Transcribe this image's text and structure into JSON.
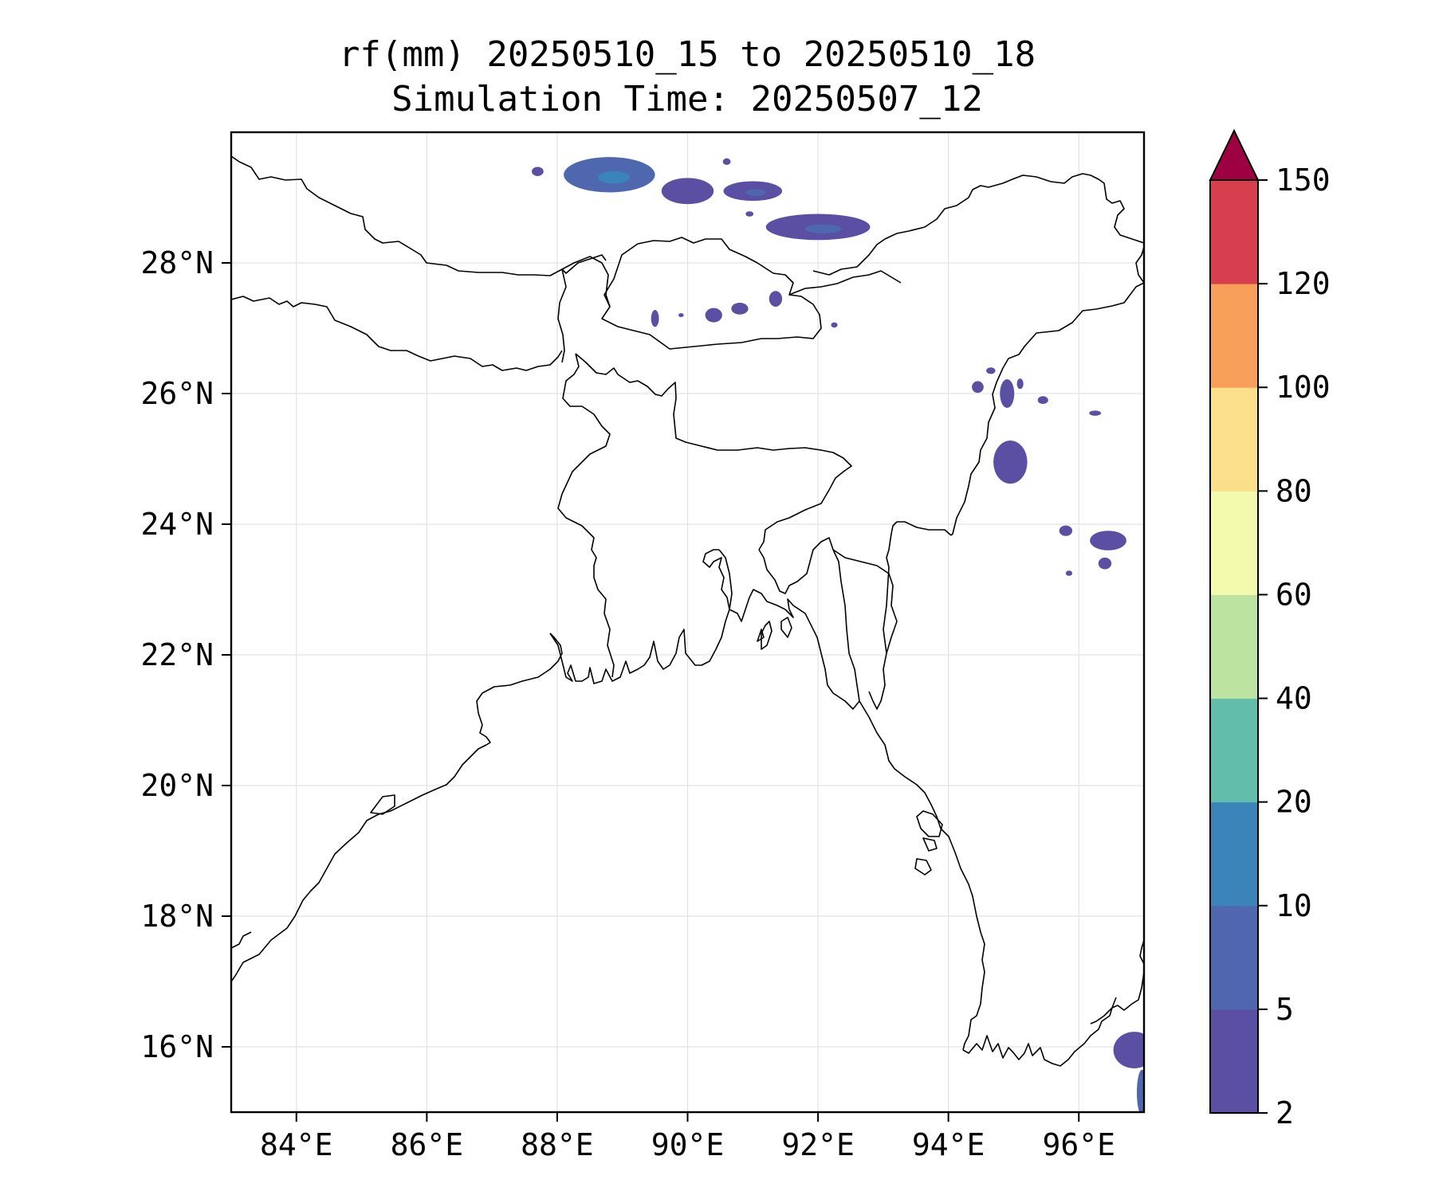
{
  "chart_data": {
    "type": "heatmap",
    "title": "rf(mm) 20250510_15 to 20250510_18",
    "subtitle": "Simulation Time: 20250507_12",
    "xlabel": "",
    "ylabel": "",
    "lon_range": [
      83.0,
      97.0
    ],
    "lat_range": [
      15.0,
      30.0
    ],
    "x_ticks": [
      "84°E",
      "86°E",
      "88°E",
      "90°E",
      "92°E",
      "94°E",
      "96°E"
    ],
    "y_ticks": [
      "16°N",
      "18°N",
      "20°N",
      "22°N",
      "24°N",
      "26°N",
      "28°N"
    ],
    "x_tick_values": [
      84,
      86,
      88,
      90,
      92,
      94,
      96
    ],
    "y_tick_values": [
      16,
      18,
      20,
      22,
      24,
      26,
      28
    ],
    "grid": true,
    "colorbar": {
      "levels": [
        2,
        5,
        10,
        20,
        40,
        60,
        80,
        100,
        120,
        150
      ],
      "labels": [
        "2",
        "5",
        "10",
        "20",
        "40",
        "60",
        "80",
        "100",
        "120",
        "150"
      ],
      "colors": [
        "#5a4fa2",
        "#4f67ae",
        "#3a84ba",
        "#62bdaa",
        "#bde3a0",
        "#f3f9ad",
        "#fbdf8b",
        "#f8a05b",
        "#d73f4e"
      ],
      "extend_color": "#9d0142",
      "extend": "max"
    },
    "rain_areas": [
      {
        "name": "tibet-cell-1",
        "lon": 88.8,
        "lat": 29.35,
        "rx": 0.7,
        "ry": 0.27,
        "level": 1,
        "core": true
      },
      {
        "name": "tibet-cell-2",
        "lon": 90.0,
        "lat": 29.1,
        "rx": 0.4,
        "ry": 0.2,
        "level": 0
      },
      {
        "name": "tibet-cell-3",
        "lon": 91.0,
        "lat": 29.1,
        "rx": 0.45,
        "ry": 0.15,
        "level": 0,
        "core": true
      },
      {
        "name": "tibet-cell-4",
        "lon": 92.0,
        "lat": 28.55,
        "rx": 0.8,
        "ry": 0.2,
        "level": 0,
        "core": true
      },
      {
        "name": "tibet-speck-1",
        "lon": 87.7,
        "lat": 29.4,
        "rx": 0.09,
        "ry": 0.07,
        "level": 0
      },
      {
        "name": "tibet-speck-2",
        "lon": 90.6,
        "lat": 29.55,
        "rx": 0.06,
        "ry": 0.05,
        "level": 0
      },
      {
        "name": "tibet-speck-3",
        "lon": 90.95,
        "lat": 28.75,
        "rx": 0.06,
        "ry": 0.04,
        "level": 0
      },
      {
        "name": "bhutan-cell-1",
        "lon": 89.5,
        "lat": 27.15,
        "rx": 0.06,
        "ry": 0.13,
        "level": 0
      },
      {
        "name": "bhutan-cell-2",
        "lon": 90.4,
        "lat": 27.2,
        "rx": 0.13,
        "ry": 0.11,
        "level": 0
      },
      {
        "name": "bhutan-cell-3",
        "lon": 90.8,
        "lat": 27.3,
        "rx": 0.13,
        "ry": 0.09,
        "level": 0
      },
      {
        "name": "bhutan-cell-4",
        "lon": 91.35,
        "lat": 27.45,
        "rx": 0.1,
        "ry": 0.12,
        "level": 0
      },
      {
        "name": "bhutan-speck-1",
        "lon": 89.9,
        "lat": 27.2,
        "rx": 0.04,
        "ry": 0.03,
        "level": 0
      },
      {
        "name": "bhutan-speck-2",
        "lon": 92.25,
        "lat": 27.05,
        "rx": 0.05,
        "ry": 0.04,
        "level": 0
      },
      {
        "name": "assam-cell-1",
        "lon": 94.45,
        "lat": 26.1,
        "rx": 0.09,
        "ry": 0.09,
        "level": 0
      },
      {
        "name": "assam-cell-2",
        "lon": 94.9,
        "lat": 26.0,
        "rx": 0.11,
        "ry": 0.22,
        "level": 0
      },
      {
        "name": "assam-cell-3",
        "lon": 95.45,
        "lat": 25.9,
        "rx": 0.08,
        "ry": 0.06,
        "level": 0
      },
      {
        "name": "assam-cell-4",
        "lon": 94.65,
        "lat": 26.35,
        "rx": 0.07,
        "ry": 0.05,
        "level": 0
      },
      {
        "name": "assam-cell-5",
        "lon": 95.1,
        "lat": 26.15,
        "rx": 0.05,
        "ry": 0.08,
        "level": 0
      },
      {
        "name": "nagaland-cell",
        "lon": 94.95,
        "lat": 24.95,
        "rx": 0.26,
        "ry": 0.33,
        "level": 0
      },
      {
        "name": "manipur-cell",
        "lon": 96.25,
        "lat": 25.7,
        "rx": 0.09,
        "ry": 0.04,
        "level": 0
      },
      {
        "name": "myanmar-cell-1",
        "lon": 95.8,
        "lat": 23.9,
        "rx": 0.1,
        "ry": 0.08,
        "level": 0
      },
      {
        "name": "myanmar-cell-2",
        "lon": 96.45,
        "lat": 23.75,
        "rx": 0.28,
        "ry": 0.15,
        "level": 0
      },
      {
        "name": "myanmar-cell-3",
        "lon": 96.4,
        "lat": 23.4,
        "rx": 0.1,
        "ry": 0.09,
        "level": 0
      },
      {
        "name": "myanmar-cell-4",
        "lon": 95.85,
        "lat": 23.25,
        "rx": 0.05,
        "ry": 0.04,
        "level": 0
      },
      {
        "name": "tanintharyi-cell-1",
        "lon": 96.85,
        "lat": 15.95,
        "rx": 0.32,
        "ry": 0.28,
        "level": 0
      },
      {
        "name": "tanintharyi-cell-2",
        "lon": 96.97,
        "lat": 15.3,
        "rx": 0.08,
        "ry": 0.35,
        "level": 1
      }
    ]
  }
}
